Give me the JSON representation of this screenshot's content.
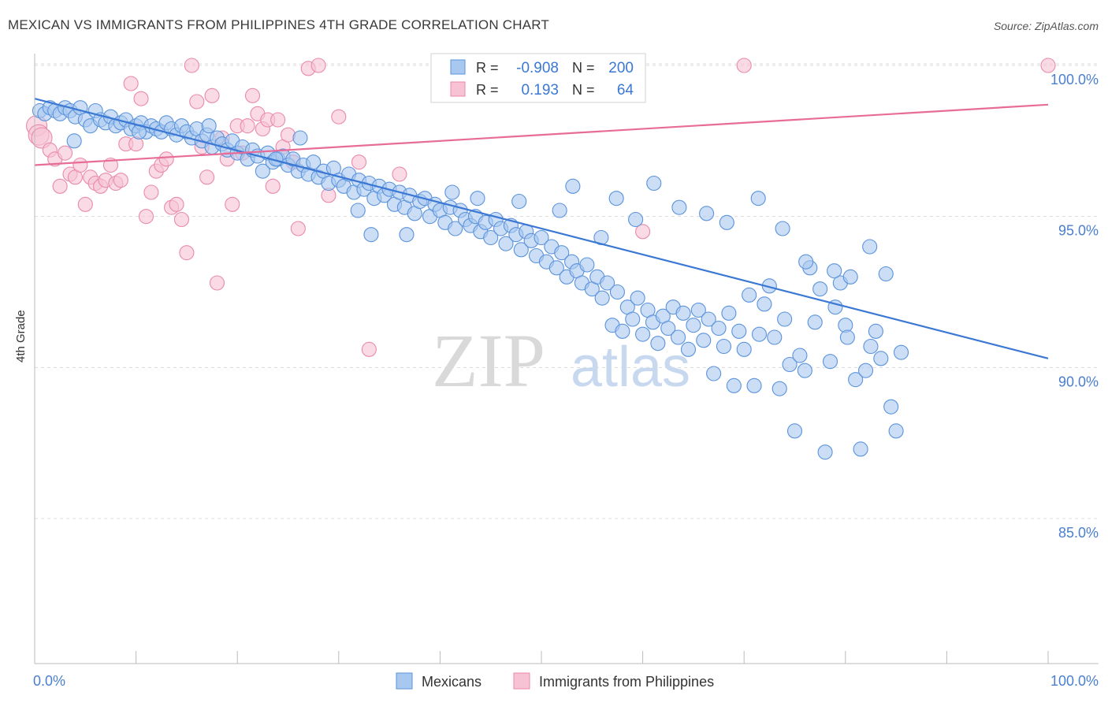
{
  "header": {
    "title": "MEXICAN VS IMMIGRANTS FROM PHILIPPINES 4TH GRADE CORRELATION CHART",
    "source": "Source: ZipAtlas.com"
  },
  "watermark": {
    "zip": "ZIP",
    "atlas": "atlas"
  },
  "legend_box": {
    "rows": [
      {
        "r_label": "R =",
        "r_value": "-0.908",
        "n_label": "N =",
        "n_value": "200",
        "color": "#6fa8e8"
      },
      {
        "r_label": "R =",
        "r_value": "0.193",
        "n_label": "N =",
        "n_value": "64",
        "color": "#ef8fb0"
      }
    ]
  },
  "colors": {
    "blue_fill": "#a9c8f0",
    "blue_stroke": "#5b93dc",
    "blue_line": "#3a78d4",
    "pink_fill": "#f7c3d4",
    "pink_stroke": "#e98aaa",
    "pink_line": "#e76c97",
    "axis_label": "#4a7fcf",
    "grid": "#dcdcdc"
  },
  "chart_data": {
    "type": "scatter",
    "title": "MEXICAN VS IMMIGRANTS FROM PHILIPPINES 4TH GRADE CORRELATION CHART",
    "xlabel": "",
    "ylabel": "4th Grade",
    "xlim": [
      0,
      100
    ],
    "ylim": [
      80.2,
      100.6
    ],
    "x_tick_labels": [
      "0.0%",
      "100.0%"
    ],
    "y_ticks": [
      85,
      90,
      95,
      100
    ],
    "y_tick_labels": [
      "85.0%",
      "90.0%",
      "95.0%",
      "100.0%"
    ],
    "grid": true,
    "legend_position": "bottom-center",
    "series": [
      {
        "name": "Mexicans",
        "r": -0.908,
        "n": 200,
        "trend": {
          "x": [
            0,
            100
          ],
          "y": [
            98.9,
            90.3
          ]
        },
        "points": [
          [
            0.5,
            98.5
          ],
          [
            1,
            98.4
          ],
          [
            1.5,
            98.6
          ],
          [
            2,
            98.5
          ],
          [
            2.5,
            98.4
          ],
          [
            3,
            98.6
          ],
          [
            3.5,
            98.5
          ],
          [
            4,
            98.3
          ],
          [
            4.5,
            98.6
          ],
          [
            5,
            98.2
          ],
          [
            5.5,
            98.0
          ],
          [
            6,
            98.5
          ],
          [
            6.5,
            98.2
          ],
          [
            7,
            98.1
          ],
          [
            7.5,
            98.3
          ],
          [
            8,
            98.0
          ],
          [
            8.5,
            98.1
          ],
          [
            9,
            98.2
          ],
          [
            9.5,
            97.9
          ],
          [
            10,
            98.0
          ],
          [
            10.5,
            98.1
          ],
          [
            11,
            97.8
          ],
          [
            11.5,
            98.0
          ],
          [
            12,
            97.9
          ],
          [
            12.5,
            97.8
          ],
          [
            13,
            98.1
          ],
          [
            13.5,
            97.9
          ],
          [
            14,
            97.7
          ],
          [
            14.5,
            98.0
          ],
          [
            15,
            97.8
          ],
          [
            15.5,
            97.6
          ],
          [
            16,
            97.9
          ],
          [
            16.5,
            97.5
          ],
          [
            17,
            97.7
          ],
          [
            17.5,
            97.3
          ],
          [
            18,
            97.6
          ],
          [
            18.5,
            97.4
          ],
          [
            19,
            97.2
          ],
          [
            19.5,
            97.5
          ],
          [
            20,
            97.1
          ],
          [
            20.5,
            97.3
          ],
          [
            21,
            96.9
          ],
          [
            21.5,
            97.2
          ],
          [
            22,
            97.0
          ],
          [
            22.5,
            96.5
          ],
          [
            23,
            97.1
          ],
          [
            23.5,
            96.8
          ],
          [
            24,
            96.9
          ],
          [
            24.5,
            97.0
          ],
          [
            25,
            96.7
          ],
          [
            25.5,
            96.9
          ],
          [
            26,
            96.5
          ],
          [
            26.5,
            96.7
          ],
          [
            27,
            96.4
          ],
          [
            27.5,
            96.8
          ],
          [
            28,
            96.3
          ],
          [
            28.5,
            96.5
          ],
          [
            29,
            96.1
          ],
          [
            29.5,
            96.6
          ],
          [
            30,
            96.2
          ],
          [
            30.5,
            96.0
          ],
          [
            31,
            96.4
          ],
          [
            31.5,
            95.8
          ],
          [
            32,
            96.2
          ],
          [
            32.5,
            95.9
          ],
          [
            33,
            96.1
          ],
          [
            33.5,
            95.6
          ],
          [
            34,
            96.0
          ],
          [
            34.5,
            95.7
          ],
          [
            35,
            95.9
          ],
          [
            35.5,
            95.4
          ],
          [
            36,
            95.8
          ],
          [
            36.5,
            95.3
          ],
          [
            37,
            95.7
          ],
          [
            37.5,
            95.1
          ],
          [
            38,
            95.5
          ],
          [
            38.5,
            95.6
          ],
          [
            39,
            95.0
          ],
          [
            39.5,
            95.4
          ],
          [
            40,
            95.2
          ],
          [
            40.5,
            94.8
          ],
          [
            41,
            95.3
          ],
          [
            41.5,
            94.6
          ],
          [
            42,
            95.2
          ],
          [
            42.5,
            94.9
          ],
          [
            43,
            94.7
          ],
          [
            43.5,
            95.0
          ],
          [
            44,
            94.5
          ],
          [
            44.5,
            94.8
          ],
          [
            45,
            94.3
          ],
          [
            45.5,
            94.9
          ],
          [
            46,
            94.6
          ],
          [
            46.5,
            94.1
          ],
          [
            47,
            94.7
          ],
          [
            47.5,
            94.4
          ],
          [
            48,
            93.9
          ],
          [
            48.5,
            94.5
          ],
          [
            49,
            94.2
          ],
          [
            49.5,
            93.7
          ],
          [
            50,
            94.3
          ],
          [
            50.5,
            93.5
          ],
          [
            51,
            94.0
          ],
          [
            51.5,
            93.3
          ],
          [
            52,
            93.8
          ],
          [
            52.5,
            93.0
          ],
          [
            53,
            93.5
          ],
          [
            53.5,
            93.2
          ],
          [
            54,
            92.8
          ],
          [
            54.5,
            93.4
          ],
          [
            55,
            92.6
          ],
          [
            55.5,
            93.0
          ],
          [
            56,
            92.3
          ],
          [
            56.5,
            92.8
          ],
          [
            57,
            91.4
          ],
          [
            57.5,
            92.5
          ],
          [
            58,
            91.2
          ],
          [
            58.5,
            92.0
          ],
          [
            59,
            91.6
          ],
          [
            59.5,
            92.3
          ],
          [
            60,
            91.1
          ],
          [
            60.5,
            91.9
          ],
          [
            61,
            91.5
          ],
          [
            61.5,
            90.8
          ],
          [
            62,
            91.7
          ],
          [
            62.5,
            91.3
          ],
          [
            63,
            92.0
          ],
          [
            63.5,
            91.0
          ],
          [
            64,
            91.8
          ],
          [
            64.5,
            90.6
          ],
          [
            65,
            91.4
          ],
          [
            65.5,
            91.9
          ],
          [
            66,
            90.9
          ],
          [
            66.5,
            91.6
          ],
          [
            67,
            89.8
          ],
          [
            67.5,
            91.3
          ],
          [
            68,
            90.7
          ],
          [
            68.5,
            91.8
          ],
          [
            69,
            89.4
          ],
          [
            69.5,
            91.2
          ],
          [
            70,
            90.6
          ],
          [
            70.5,
            92.4
          ],
          [
            71,
            89.4
          ],
          [
            71.5,
            91.1
          ],
          [
            72,
            92.1
          ],
          [
            72.5,
            92.7
          ],
          [
            73,
            91.0
          ],
          [
            73.5,
            89.3
          ],
          [
            74,
            91.6
          ],
          [
            74.5,
            90.1
          ],
          [
            75,
            87.9
          ],
          [
            75.5,
            90.4
          ],
          [
            76,
            89.9
          ],
          [
            76.5,
            93.3
          ],
          [
            77,
            91.5
          ],
          [
            77.5,
            92.6
          ],
          [
            78,
            87.2
          ],
          [
            78.5,
            90.2
          ],
          [
            79,
            92.0
          ],
          [
            79.5,
            92.8
          ],
          [
            80,
            91.4
          ],
          [
            80.5,
            93.0
          ],
          [
            81,
            89.6
          ],
          [
            81.5,
            87.3
          ],
          [
            82,
            89.9
          ],
          [
            82.5,
            90.7
          ],
          [
            83,
            91.2
          ],
          [
            83.5,
            90.3
          ],
          [
            84,
            93.1
          ],
          [
            84.5,
            88.7
          ],
          [
            85,
            87.9
          ],
          [
            85.5,
            90.5
          ],
          [
            3.9,
            97.5
          ],
          [
            10.3,
            97.8
          ],
          [
            17.2,
            98.0
          ],
          [
            23.8,
            96.9
          ],
          [
            26.2,
            97.6
          ],
          [
            31.9,
            95.2
          ],
          [
            33.2,
            94.4
          ],
          [
            36.7,
            94.4
          ],
          [
            41.2,
            95.8
          ],
          [
            43.7,
            95.6
          ],
          [
            47.8,
            95.5
          ],
          [
            51.8,
            95.2
          ],
          [
            53.1,
            96.0
          ],
          [
            55.9,
            94.3
          ],
          [
            57.4,
            95.6
          ],
          [
            59.3,
            94.9
          ],
          [
            61.1,
            96.1
          ],
          [
            63.6,
            95.3
          ],
          [
            66.3,
            95.1
          ],
          [
            68.3,
            94.8
          ],
          [
            71.4,
            95.6
          ],
          [
            73.8,
            94.6
          ],
          [
            76.1,
            93.5
          ],
          [
            78.9,
            93.2
          ],
          [
            80.2,
            91.0
          ],
          [
            82.4,
            94.0
          ]
        ]
      },
      {
        "name": "Immigrants from Philippines",
        "r": 0.193,
        "n": 64,
        "trend": {
          "x": [
            0,
            100
          ],
          "y": [
            96.7,
            98.7
          ]
        },
        "points": [
          [
            0.2,
            98.0
          ],
          [
            0.4,
            97.7
          ],
          [
            0.7,
            97.6
          ],
          [
            1.5,
            97.2
          ],
          [
            2,
            96.9
          ],
          [
            2.5,
            96.0
          ],
          [
            3,
            97.1
          ],
          [
            3.5,
            96.4
          ],
          [
            4,
            96.3
          ],
          [
            4.5,
            96.7
          ],
          [
            5,
            95.4
          ],
          [
            5.5,
            96.3
          ],
          [
            6,
            96.1
          ],
          [
            6.5,
            96.0
          ],
          [
            7,
            96.2
          ],
          [
            7.5,
            96.7
          ],
          [
            8,
            96.1
          ],
          [
            8.5,
            96.2
          ],
          [
            9,
            97.4
          ],
          [
            9.5,
            99.4
          ],
          [
            10,
            97.4
          ],
          [
            10.5,
            98.9
          ],
          [
            11,
            95.0
          ],
          [
            11.5,
            95.8
          ],
          [
            12,
            96.5
          ],
          [
            12.5,
            96.7
          ],
          [
            13,
            96.9
          ],
          [
            13.5,
            95.3
          ],
          [
            14,
            95.4
          ],
          [
            14.5,
            94.9
          ],
          [
            15,
            93.8
          ],
          [
            15.5,
            100.0
          ],
          [
            16,
            98.8
          ],
          [
            16.5,
            97.3
          ],
          [
            17,
            96.3
          ],
          [
            17.5,
            99.0
          ],
          [
            18,
            92.8
          ],
          [
            18.5,
            97.6
          ],
          [
            19,
            96.9
          ],
          [
            19.5,
            95.4
          ],
          [
            20,
            98.0
          ],
          [
            20.5,
            97.1
          ],
          [
            21,
            98.0
          ],
          [
            21.5,
            99.0
          ],
          [
            22,
            98.4
          ],
          [
            22.5,
            97.9
          ],
          [
            23,
            98.2
          ],
          [
            23.5,
            96.0
          ],
          [
            24,
            98.2
          ],
          [
            24.5,
            97.3
          ],
          [
            25,
            97.7
          ],
          [
            25.5,
            96.8
          ],
          [
            26,
            94.6
          ],
          [
            27,
            99.9
          ],
          [
            28,
            100.0
          ],
          [
            29,
            95.7
          ],
          [
            30,
            98.3
          ],
          [
            32,
            96.8
          ],
          [
            33,
            90.6
          ],
          [
            36,
            96.4
          ],
          [
            48,
            100.0
          ],
          [
            60,
            94.5
          ],
          [
            70,
            100.0
          ],
          [
            100,
            100.0
          ]
        ]
      }
    ]
  }
}
